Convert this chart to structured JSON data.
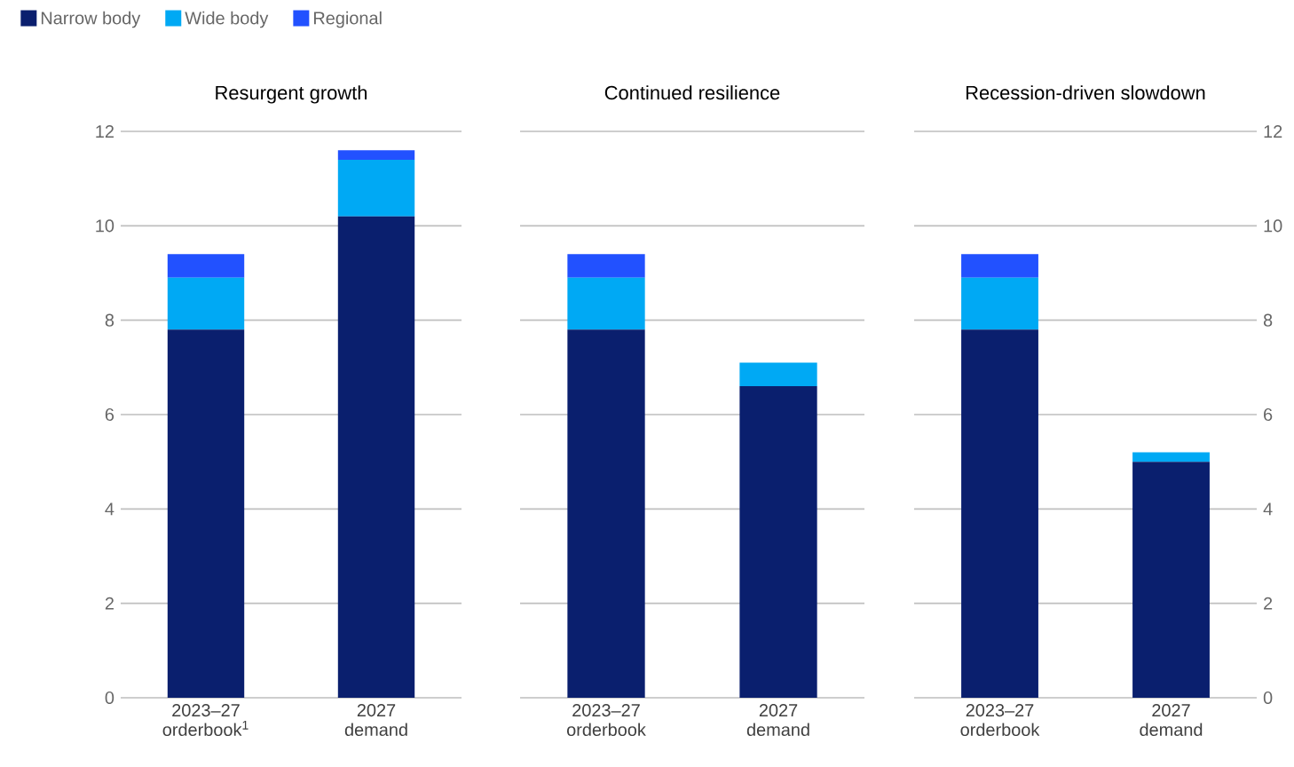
{
  "chart_data": [
    {
      "type": "bar",
      "stacked": true,
      "title": "Resurgent growth",
      "categories": [
        "2023–27 orderbook$^{1}$",
        "2027 demand"
      ],
      "ylim": [
        0,
        12
      ],
      "yticks": [
        0,
        2,
        4,
        6,
        8,
        10,
        12
      ],
      "grid": "y",
      "legend": "top left",
      "series": [
        {
          "name": "Narrow body",
          "color": "#0a1f6e",
          "values": [
            7.8,
            10.2
          ]
        },
        {
          "name": "Wide body",
          "color": "#00a9f4",
          "values": [
            1.1,
            1.2
          ]
        },
        {
          "name": "Regional",
          "color": "#2251ff",
          "values": [
            0.5,
            0.2
          ]
        }
      ]
    },
    {
      "type": "bar",
      "stacked": true,
      "title": "Continued resilience",
      "categories": [
        "2023–27 orderbook",
        "2027 demand"
      ],
      "ylim": [
        0,
        12
      ],
      "yticks": [
        0,
        2,
        4,
        6,
        8,
        10,
        12
      ],
      "grid": "y",
      "tick_labels": "x",
      "series": [
        {
          "color": "#0a1f6e",
          "values": [
            7.8,
            6.6
          ]
        },
        {
          "color": "#00a9f4",
          "values": [
            1.1,
            0.5
          ]
        },
        {
          "color": "#2251ff",
          "values": [
            0.5,
            null
          ]
        }
      ]
    },
    {
      "type": "bar",
      "stacked": true,
      "title": "Recession-driven slowdown",
      "categories": [
        "2023–27 orderbook",
        "2027 demand"
      ],
      "y2lim": [
        0,
        12
      ],
      "y2ticks": [
        0,
        2,
        4,
        6,
        8,
        10,
        12
      ],
      "grid": "y",
      "series": [
        {
          "color": "#0a1f6e",
          "values": [
            7.8,
            5.0
          ],
          "axis": "y2"
        },
        {
          "color": "#00a9f4",
          "values": [
            1.1,
            0.2
          ],
          "axis": "y2"
        },
        {
          "color": "#2251ff",
          "values": [
            0.5,
            null
          ],
          "axis": "y2"
        }
      ]
    }
  ]
}
